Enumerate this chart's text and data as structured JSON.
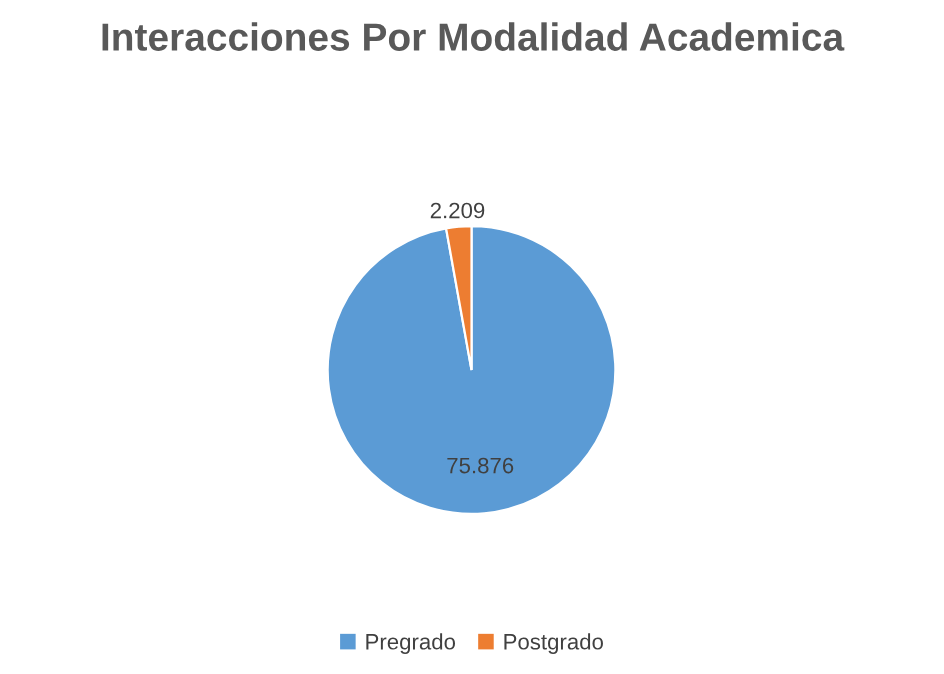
{
  "chart_data": {
    "type": "pie",
    "title": "Interacciones Por Modalidad Academica",
    "categories": [
      "Pregrado",
      "Postgrado"
    ],
    "values": [
      75876,
      2209
    ],
    "value_labels": [
      "75.876",
      "2.209"
    ],
    "colors": [
      "#5b9bd5",
      "#ed7d31"
    ],
    "legend": "bottom"
  }
}
